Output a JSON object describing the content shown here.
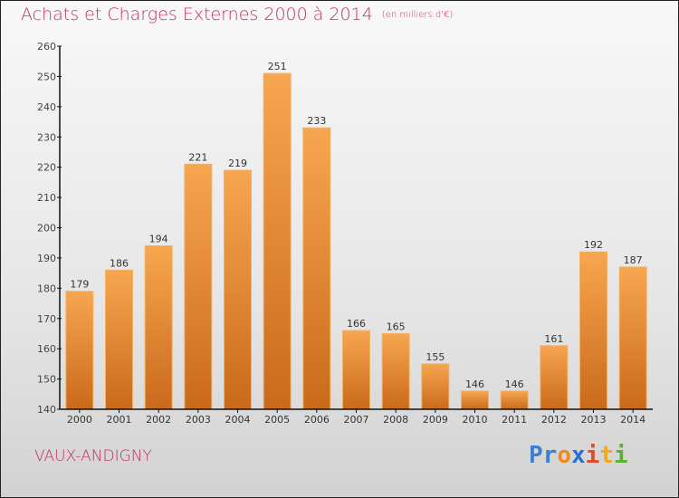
{
  "header": {
    "title": "Achats et Charges Externes 2000 à 2014",
    "subtitle": "(en milliers d'€)"
  },
  "footer": {
    "commune": "VAUX-ANDIGNY",
    "logo_letters": [
      {
        "ch": "P",
        "color": "#3a7fd0"
      },
      {
        "ch": "r",
        "color": "#3a7fd0"
      },
      {
        "ch": "o",
        "color": "#f08a1c"
      },
      {
        "ch": "x",
        "color": "#2a6fd0"
      },
      {
        "ch": "i",
        "color": "#e04a2a"
      },
      {
        "ch": "t",
        "color": "#f0a81c"
      },
      {
        "ch": "i",
        "color": "#5ab030"
      }
    ]
  },
  "colors": {
    "title": "#c0306a",
    "bar_top": "#f7a650",
    "bar_bottom": "#c96a1a",
    "bar_edge": "#f3b068"
  },
  "chart_data": {
    "type": "bar",
    "title": "Achats et Charges Externes 2000 à 2014",
    "subtitle": "(en milliers d'€)",
    "xlabel": "",
    "ylabel": "",
    "categories": [
      "2000",
      "2001",
      "2002",
      "2003",
      "2004",
      "2005",
      "2006",
      "2007",
      "2008",
      "2009",
      "2010",
      "2011",
      "2012",
      "2013",
      "2014"
    ],
    "values": [
      179,
      186,
      194,
      221,
      219,
      251,
      233,
      166,
      165,
      155,
      146,
      146,
      161,
      192,
      187
    ],
    "ylim": [
      140,
      260
    ],
    "yticks": [
      140,
      150,
      160,
      170,
      180,
      190,
      200,
      210,
      220,
      230,
      240,
      250,
      260
    ],
    "grid": false,
    "legend": "none"
  }
}
